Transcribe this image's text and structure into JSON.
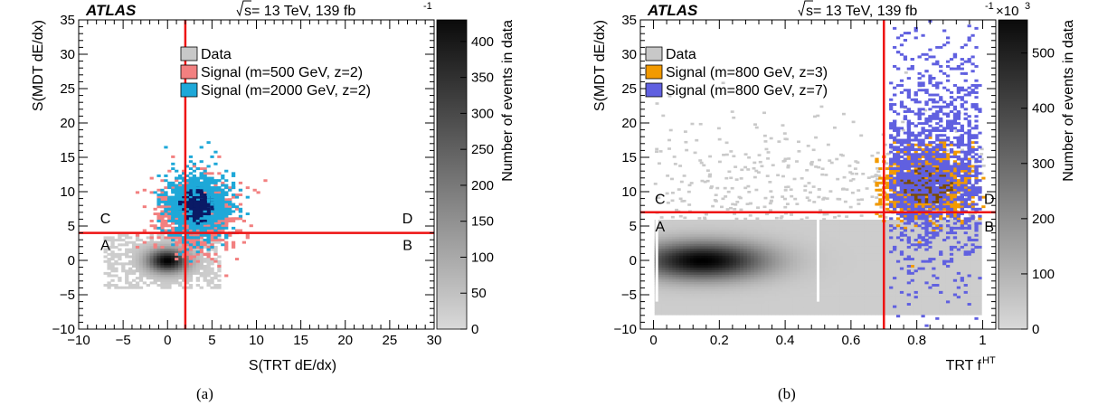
{
  "chart_data": [
    {
      "type": "heatmap",
      "panel_label": "(a)",
      "experiment": "ATLAS",
      "energy_prefix": "s",
      "energy_text": " = 13 TeV, 139 fb",
      "energy_sup": "-1",
      "xlabel": "S(TRT dE/dx)",
      "ylabel": "S(MDT dE/dx)",
      "xlim": [
        -10,
        30
      ],
      "ylim": [
        -10,
        35
      ],
      "x_ticks": [
        -10,
        -5,
        0,
        5,
        10,
        15,
        20,
        25,
        30
      ],
      "y_ticks": [
        -10,
        -5,
        0,
        5,
        10,
        15,
        20,
        25,
        30,
        35
      ],
      "colorbar": {
        "label": "Number of events in data",
        "range": [
          0,
          430
        ],
        "ticks": [
          0,
          50,
          100,
          150,
          200,
          250,
          300,
          350,
          400
        ],
        "multiplier": ""
      },
      "legend_position": "top-right",
      "legend": [
        {
          "label": "Data",
          "color": "#c8c8c8"
        },
        {
          "label": "Signal (m=500 GeV, z=2)",
          "color": "#f28080"
        },
        {
          "label": "Signal (m=2000 GeV, z=2)",
          "color": "#1ea8d8"
        }
      ],
      "cut_lines": {
        "x": 2,
        "y": 4,
        "color": "#ee1111"
      },
      "regions": [
        {
          "label": "A",
          "x": -7,
          "y": 1.5
        },
        {
          "label": "B",
          "x": 27,
          "y": 1.5
        },
        {
          "label": "C",
          "x": -7,
          "y": 5.4
        },
        {
          "label": "D",
          "x": 27,
          "y": 5.4
        }
      ],
      "distributions": [
        {
          "name": "Data",
          "kind": "data",
          "center": [
            0,
            0
          ],
          "sigma": [
            2.3,
            1.7
          ],
          "extent_x": [
            -7,
            6
          ],
          "extent_y": [
            -4,
            4
          ]
        },
        {
          "name": "Signal (m=500 GeV, z=2)",
          "kind": "signal",
          "color": "#f28080",
          "center": [
            3.2,
            6.5
          ],
          "sigma": [
            2.0,
            2.6
          ]
        },
        {
          "name": "Signal (m=2000 GeV, z=2)",
          "kind": "signal",
          "color": "#1ea8d8",
          "dark_color": "#0a1a66",
          "center": [
            3.3,
            8.0
          ],
          "sigma": [
            1.7,
            2.4
          ]
        }
      ]
    },
    {
      "type": "heatmap",
      "panel_label": "(b)",
      "experiment": "ATLAS",
      "energy_prefix": "s",
      "energy_text": " = 13 TeV, 139 fb",
      "energy_sup": "-1",
      "xlabel": "TRT f",
      "xlabel_sup": "HT",
      "ylabel": "S(MDT dE/dx)",
      "xlim": [
        -0.04,
        1.04
      ],
      "ylim": [
        -10,
        35
      ],
      "x_ticks": [
        0,
        0.2,
        0.4,
        0.6,
        0.8,
        1
      ],
      "y_ticks": [
        -10,
        -5,
        0,
        5,
        10,
        15,
        20,
        25,
        30,
        35
      ],
      "colorbar": {
        "label": "Number of events in data",
        "range": [
          0,
          560
        ],
        "ticks": [
          0,
          100,
          200,
          300,
          400,
          500
        ],
        "multiplier": "×10",
        "multiplier_sup": "3"
      },
      "legend_position": "top-left",
      "legend": [
        {
          "label": "Data",
          "color": "#c8c8c8"
        },
        {
          "label": "Signal (m=800 GeV, z=3)",
          "color": "#f29a00"
        },
        {
          "label": "Signal (m=800 GeV, z=7)",
          "color": "#6060e0"
        }
      ],
      "cut_lines": {
        "x": 0.7,
        "y": 7,
        "color": "#ee1111"
      },
      "regions": [
        {
          "label": "A",
          "x": 0.02,
          "y": 4.2
        },
        {
          "label": "B",
          "x": 1.02,
          "y": 4.2
        },
        {
          "label": "C",
          "x": 0.02,
          "y": 8.2
        },
        {
          "label": "D",
          "x": 1.02,
          "y": 8.2
        }
      ],
      "distributions": [
        {
          "name": "Data",
          "kind": "data",
          "center": [
            0.15,
            0
          ],
          "sigma": [
            0.2,
            2.8
          ],
          "extent_x": [
            0,
            1
          ],
          "extent_y": [
            -8,
            6
          ]
        },
        {
          "name": "Signal (m=800 GeV, z=3)",
          "kind": "signal",
          "color": "#f29a00",
          "dark_color": "#7a4a00",
          "center": [
            0.83,
            11
          ],
          "sigma": [
            0.07,
            2.5
          ]
        },
        {
          "name": "Signal (m=800 GeV, z=7)",
          "kind": "signal",
          "color": "#6060e0",
          "center": [
            0.93,
            14
          ],
          "sigma": [
            0.06,
            8
          ]
        }
      ]
    }
  ]
}
